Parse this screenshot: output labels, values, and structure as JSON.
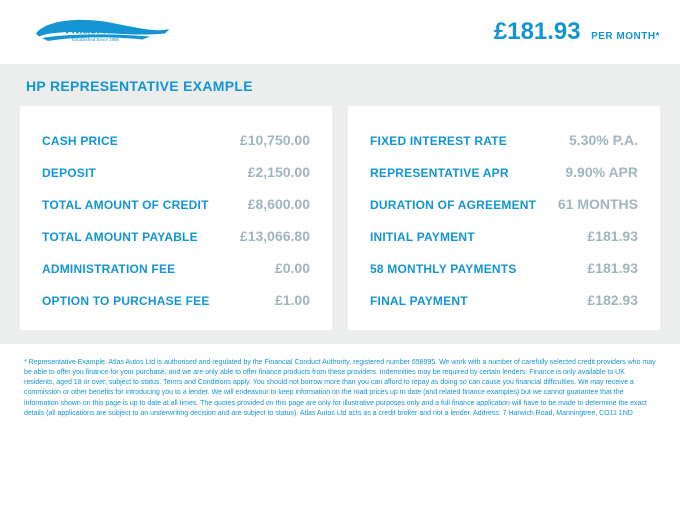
{
  "brand": {
    "name": "AtlasAutos",
    "tagline": "Established Since 1986"
  },
  "header": {
    "price": "£181.93",
    "price_suffix": "PER MONTH*"
  },
  "section": {
    "title": "HP REPRESENTATIVE EXAMPLE"
  },
  "left": [
    {
      "label": "CASH PRICE",
      "value": "£10,750.00"
    },
    {
      "label": "DEPOSIT",
      "value": "£2,150.00"
    },
    {
      "label": "TOTAL AMOUNT OF CREDIT",
      "value": "£8,600.00"
    },
    {
      "label": "TOTAL AMOUNT PAYABLE",
      "value": "£13,066.80"
    },
    {
      "label": "ADMINISTRATION FEE",
      "value": "£0.00"
    },
    {
      "label": "OPTION TO PURCHASE FEE",
      "value": "£1.00"
    }
  ],
  "right": [
    {
      "label": "FIXED INTEREST RATE",
      "value": "5.30% P.A."
    },
    {
      "label": "REPRESENTATIVE APR",
      "value": "9.90% APR"
    },
    {
      "label": "DURATION OF AGREEMENT",
      "value": "61 MONTHS"
    },
    {
      "label": "INITIAL PAYMENT",
      "value": "£181.93"
    },
    {
      "label": "58 MONTHLY PAYMENTS",
      "value": "£181.93"
    },
    {
      "label": "FINAL PAYMENT",
      "value": "£182.93"
    }
  ],
  "footnote": "* Representative Example. Atlas Autos Ltd is authorised and regulated by the Financial Conduct Authority, registered number 658995. We work with a number of carefully selected credit providers who may be able to offer you finance for your purchase, and we are only able to offer finance products from these providers. Indemnities may be required by certain lenders. Finance is only available to UK residents, aged 18 or over, subject to status. Terms and Conditions apply. You should not borrow more than you can afford to repay as doing so can cause you financial difficulties. We may receive a commission or other benefits for introducing you to a lender. We will endeavour to keep information on the road prices up to date (and related finance examples) but we cannot guarantee that the information shown on this page is up to date at all times. The quotes provided on this page are only for illustrative purposes only and a full finance application will have to be made to determine the exact details (all applications are subject to an underwriting decision and are subject to status). Atlas Autos Ltd acts as a credit broker and not a lender. Address: 7 Harwich Road, Manningtree, CO11 1ND",
  "colors": {
    "brand": "#1495d2",
    "muted_value": "#9fb6bd",
    "panel_bg": "#eceeee",
    "card_bg": "#ffffff"
  }
}
